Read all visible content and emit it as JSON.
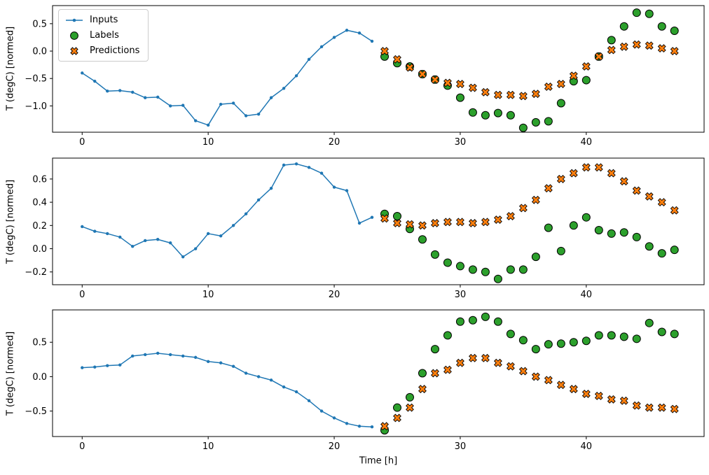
{
  "figure": {
    "xlabel": "Time [h]",
    "x_ticks": [
      0,
      10,
      20,
      30,
      40
    ],
    "colors": {
      "inputs": "#1f77b4",
      "labels": "#2ca02c",
      "predictions": "#ff7f0e",
      "marker_edge": "#000000"
    },
    "legend": [
      {
        "label": "Inputs",
        "marker": "line-dot",
        "color": "#1f77b4"
      },
      {
        "label": "Labels",
        "marker": "circle",
        "color": "#2ca02c"
      },
      {
        "label": "Predictions",
        "marker": "x",
        "color": "#ff7f0e"
      }
    ],
    "legend_position": "upper-left-of-first-subplot"
  },
  "chart_data": [
    {
      "type": "line+scatter",
      "title": "",
      "xlabel": "",
      "ylabel": "T (degC) [normed]",
      "xlim": [
        -2.35,
        49.35
      ],
      "ylim": [
        -1.48,
        0.83
      ],
      "y_ticks": [
        -1.0,
        -0.5,
        0.0,
        0.5
      ],
      "grid": false,
      "series": [
        {
          "name": "Inputs",
          "marker": "line-dot",
          "color": "#1f77b4",
          "x": [
            0,
            1,
            2,
            3,
            4,
            5,
            6,
            7,
            8,
            9,
            10,
            11,
            12,
            13,
            14,
            15,
            16,
            17,
            18,
            19,
            20,
            21,
            22,
            23
          ],
          "y": [
            -0.4,
            -0.55,
            -0.73,
            -0.72,
            -0.75,
            -0.85,
            -0.84,
            -1.0,
            -0.99,
            -1.27,
            -1.35,
            -0.97,
            -0.95,
            -1.18,
            -1.15,
            -0.85,
            -0.68,
            -0.45,
            -0.15,
            0.08,
            0.25,
            0.38,
            0.33,
            0.18
          ]
        },
        {
          "name": "Labels",
          "marker": "circle",
          "color": "#2ca02c",
          "x": [
            24,
            25,
            26,
            27,
            28,
            29,
            30,
            31,
            32,
            33,
            34,
            35,
            36,
            37,
            38,
            39,
            40,
            41,
            42,
            43,
            44,
            45,
            46,
            47
          ],
          "y": [
            -0.1,
            -0.22,
            -0.28,
            -0.42,
            -0.52,
            -0.63,
            -0.85,
            -1.12,
            -1.17,
            -1.13,
            -1.17,
            -1.4,
            -1.3,
            -1.28,
            -0.95,
            -0.55,
            -0.53,
            -0.1,
            0.2,
            0.45,
            0.7,
            0.68,
            0.45,
            0.37
          ]
        },
        {
          "name": "Predictions",
          "marker": "x",
          "color": "#ff7f0e",
          "x": [
            24,
            25,
            26,
            27,
            28,
            29,
            30,
            31,
            32,
            33,
            34,
            35,
            36,
            37,
            38,
            39,
            40,
            41,
            42,
            43,
            44,
            45,
            46,
            47
          ],
          "y": [
            0.0,
            -0.15,
            -0.3,
            -0.42,
            -0.52,
            -0.58,
            -0.6,
            -0.67,
            -0.75,
            -0.8,
            -0.8,
            -0.82,
            -0.78,
            -0.65,
            -0.6,
            -0.45,
            -0.28,
            -0.1,
            0.02,
            0.08,
            0.12,
            0.1,
            0.05,
            0.0
          ]
        }
      ]
    },
    {
      "type": "line+scatter",
      "title": "",
      "xlabel": "",
      "ylabel": "T (degC) [normed]",
      "xlim": [
        -2.35,
        49.35
      ],
      "ylim": [
        -0.31,
        0.78
      ],
      "y_ticks": [
        -0.2,
        0.0,
        0.2,
        0.4,
        0.6
      ],
      "grid": false,
      "series": [
        {
          "name": "Inputs",
          "marker": "line-dot",
          "color": "#1f77b4",
          "x": [
            0,
            1,
            2,
            3,
            4,
            5,
            6,
            7,
            8,
            9,
            10,
            11,
            12,
            13,
            14,
            15,
            16,
            17,
            18,
            19,
            20,
            21,
            22,
            23
          ],
          "y": [
            0.19,
            0.15,
            0.13,
            0.1,
            0.02,
            0.07,
            0.08,
            0.05,
            -0.07,
            0.0,
            0.13,
            0.11,
            0.2,
            0.3,
            0.42,
            0.52,
            0.72,
            0.73,
            0.7,
            0.65,
            0.53,
            0.5,
            0.22,
            0.27
          ]
        },
        {
          "name": "Labels",
          "marker": "circle",
          "color": "#2ca02c",
          "x": [
            24,
            25,
            26,
            27,
            28,
            29,
            30,
            31,
            32,
            33,
            34,
            35,
            36,
            37,
            38,
            39,
            40,
            41,
            42,
            43,
            44,
            45,
            46,
            47
          ],
          "y": [
            0.3,
            0.28,
            0.17,
            0.08,
            -0.05,
            -0.12,
            -0.15,
            -0.18,
            -0.2,
            -0.26,
            -0.18,
            -0.18,
            -0.07,
            0.18,
            -0.02,
            0.2,
            0.27,
            0.16,
            0.13,
            0.14,
            0.1,
            0.02,
            -0.04,
            -0.01
          ]
        },
        {
          "name": "Predictions",
          "marker": "x",
          "color": "#ff7f0e",
          "x": [
            24,
            25,
            26,
            27,
            28,
            29,
            30,
            31,
            32,
            33,
            34,
            35,
            36,
            37,
            38,
            39,
            40,
            41,
            42,
            43,
            44,
            45,
            46,
            47
          ],
          "y": [
            0.26,
            0.22,
            0.21,
            0.2,
            0.22,
            0.23,
            0.23,
            0.22,
            0.23,
            0.25,
            0.28,
            0.35,
            0.42,
            0.52,
            0.6,
            0.65,
            0.7,
            0.7,
            0.65,
            0.58,
            0.5,
            0.45,
            0.4,
            0.33
          ]
        }
      ]
    },
    {
      "type": "line+scatter",
      "title": "",
      "xlabel": "Time [h]",
      "ylabel": "T (degC) [normed]",
      "xlim": [
        -2.35,
        49.35
      ],
      "ylim": [
        -0.87,
        0.97
      ],
      "y_ticks": [
        -0.5,
        0.0,
        0.5
      ],
      "grid": false,
      "series": [
        {
          "name": "Inputs",
          "marker": "line-dot",
          "color": "#1f77b4",
          "x": [
            0,
            1,
            2,
            3,
            4,
            5,
            6,
            7,
            8,
            9,
            10,
            11,
            12,
            13,
            14,
            15,
            16,
            17,
            18,
            19,
            20,
            21,
            22,
            23
          ],
          "y": [
            0.13,
            0.14,
            0.16,
            0.17,
            0.3,
            0.32,
            0.34,
            0.32,
            0.3,
            0.28,
            0.22,
            0.2,
            0.15,
            0.05,
            0.0,
            -0.05,
            -0.15,
            -0.22,
            -0.35,
            -0.5,
            -0.6,
            -0.68,
            -0.72,
            -0.73
          ]
        },
        {
          "name": "Labels",
          "marker": "circle",
          "color": "#2ca02c",
          "x": [
            24,
            25,
            26,
            27,
            28,
            29,
            30,
            31,
            32,
            33,
            34,
            35,
            36,
            37,
            38,
            39,
            40,
            41,
            42,
            43,
            44,
            45,
            46,
            47
          ],
          "y": [
            -0.78,
            -0.45,
            -0.3,
            0.05,
            0.4,
            0.6,
            0.8,
            0.82,
            0.87,
            0.8,
            0.62,
            0.53,
            0.4,
            0.47,
            0.48,
            0.5,
            0.52,
            0.6,
            0.6,
            0.58,
            0.55,
            0.78,
            0.65,
            0.62
          ]
        },
        {
          "name": "Predictions",
          "marker": "x",
          "color": "#ff7f0e",
          "x": [
            24,
            25,
            26,
            27,
            28,
            29,
            30,
            31,
            32,
            33,
            34,
            35,
            36,
            37,
            38,
            39,
            40,
            41,
            42,
            43,
            44,
            45,
            46,
            47
          ],
          "y": [
            -0.72,
            -0.6,
            -0.45,
            -0.18,
            0.05,
            0.1,
            0.2,
            0.27,
            0.27,
            0.2,
            0.15,
            0.08,
            0.0,
            -0.05,
            -0.12,
            -0.18,
            -0.25,
            -0.28,
            -0.33,
            -0.35,
            -0.42,
            -0.45,
            -0.45,
            -0.47
          ]
        }
      ]
    }
  ]
}
